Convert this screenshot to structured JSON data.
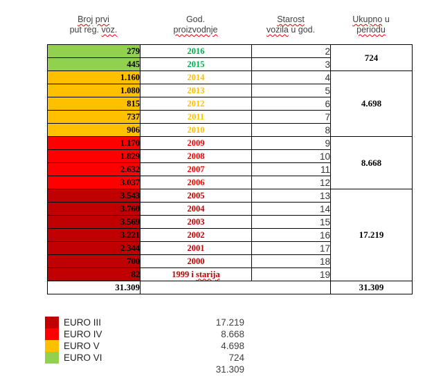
{
  "colors": {
    "euro3": {
      "bg": "#c00000",
      "year": "#c00000"
    },
    "euro4": {
      "bg": "#fe0000",
      "year": "#ff0000"
    },
    "euro5": {
      "bg": "#ffc000",
      "year": "#ffc000"
    },
    "euro6": {
      "bg": "#92d050",
      "year": "#00b050"
    },
    "squiggle": "#e00000",
    "border": "#000000"
  },
  "table": {
    "headers": [
      {
        "name": "registered-count",
        "lines": [
          [
            {
              "t": "Broj",
              "sq": true
            },
            {
              "t": "prvi",
              "sq": true
            }
          ],
          [
            {
              "t": "put",
              "sq": false
            },
            {
              "t": "reg.",
              "sq": false
            },
            {
              "t": "voz.",
              "sq": true
            }
          ]
        ]
      },
      {
        "name": "production-year",
        "lines": [
          [
            {
              "t": "God.",
              "sq": false
            }
          ],
          [
            {
              "t": "proizvodnje",
              "sq": true
            }
          ]
        ]
      },
      {
        "name": "vehicle-age",
        "lines": [
          [
            {
              "t": "Starost",
              "sq": true
            }
          ],
          [
            {
              "t": "vozila",
              "sq": true
            },
            {
              "t": "u",
              "sq": false
            },
            {
              "t": "god.",
              "sq": false
            }
          ]
        ]
      },
      {
        "name": "period-total",
        "lines": [
          [
            {
              "t": "Ukupno",
              "sq": true
            },
            {
              "t": "u",
              "sq": false
            }
          ],
          [
            {
              "t": "periodu",
              "sq": true
            }
          ]
        ]
      }
    ],
    "rows": [
      {
        "count": "279",
        "year": "2016",
        "age": "2",
        "group": "euro6"
      },
      {
        "count": "445",
        "year": "2015",
        "age": "3",
        "group": "euro6"
      },
      {
        "count": "1.160",
        "year": "2014",
        "age": "4",
        "group": "euro5"
      },
      {
        "count": "1.080",
        "year": "2013",
        "age": "5",
        "group": "euro5"
      },
      {
        "count": "815",
        "year": "2012",
        "age": "6",
        "group": "euro5"
      },
      {
        "count": "737",
        "year": "2011",
        "age": "7",
        "group": "euro5"
      },
      {
        "count": "906",
        "year": "2010",
        "age": "8",
        "group": "euro5"
      },
      {
        "count": "1.170",
        "year": "2009",
        "age": "9",
        "group": "euro4"
      },
      {
        "count": "1.829",
        "year": "2008",
        "age": "10",
        "group": "euro4"
      },
      {
        "count": "2.632",
        "year": "2007",
        "age": "11",
        "group": "euro4"
      },
      {
        "count": "3.037",
        "year": "2006",
        "age": "12",
        "group": "euro4"
      },
      {
        "count": "3.543",
        "year": "2005",
        "age": "13",
        "group": "euro3"
      },
      {
        "count": "3.760",
        "year": "2004",
        "age": "14",
        "group": "euro3"
      },
      {
        "count": "3.569",
        "year": "2003",
        "age": "15",
        "group": "euro3"
      },
      {
        "count": "3.221",
        "year": "2002",
        "age": "16",
        "group": "euro3"
      },
      {
        "count": "2.344",
        "year": "2001",
        "age": "17",
        "group": "euro3"
      },
      {
        "count": "700",
        "year": "2000",
        "age": "18",
        "group": "euro3"
      },
      {
        "count": "82",
        "year": "1999 i starija",
        "sq_word": "starija",
        "age": "19",
        "group": "euro3"
      }
    ],
    "period_groups": [
      {
        "total": "724",
        "span": 2
      },
      {
        "total": "4.698",
        "span": 5
      },
      {
        "total": "8.668",
        "span": 4
      },
      {
        "total": "17.219",
        "span": 7
      }
    ],
    "total_row": {
      "registered_total": "31.309",
      "period_total": "31.309"
    }
  },
  "legend": {
    "items": [
      {
        "label": "EURO III",
        "value": "17.219",
        "color_key": "euro3"
      },
      {
        "label": "EURO IV",
        "value": "8.668",
        "color_key": "euro4"
      },
      {
        "label": "EURO V",
        "value": "4.698",
        "color_key": "euro5"
      },
      {
        "label": "EURO VI",
        "value": "724",
        "color_key": "euro6"
      }
    ],
    "total": "31.309"
  },
  "chart_data": {
    "type": "table",
    "title": "",
    "columns": [
      "Broj prvi put reg. voz.",
      "God. proizvodnje",
      "Starost vozila u god.",
      "Ukupno u periodu"
    ],
    "rows": [
      [
        279,
        "2016",
        2
      ],
      [
        445,
        "2015",
        3
      ],
      [
        1160,
        "2014",
        4
      ],
      [
        1080,
        "2013",
        5
      ],
      [
        815,
        "2012",
        6
      ],
      [
        737,
        "2011",
        7
      ],
      [
        906,
        "2010",
        8
      ],
      [
        1170,
        "2009",
        9
      ],
      [
        1829,
        "2008",
        10
      ],
      [
        2632,
        "2007",
        11
      ],
      [
        3037,
        "2006",
        12
      ],
      [
        3543,
        "2005",
        13
      ],
      [
        3760,
        "2004",
        14
      ],
      [
        3569,
        "2003",
        15
      ],
      [
        3221,
        "2002",
        16
      ],
      [
        2344,
        "2001",
        17
      ],
      [
        700,
        "2000",
        18
      ],
      [
        82,
        "1999 i starija",
        19
      ]
    ],
    "period_totals": [
      {
        "years": "2016-2015",
        "total": 724
      },
      {
        "years": "2014-2010",
        "total": 4698
      },
      {
        "years": "2009-2006",
        "total": 8668
      },
      {
        "years": "2005-1999 i starija",
        "total": 17219
      }
    ],
    "grand_total": 31309,
    "legend": [
      {
        "label": "EURO III",
        "value": 17219,
        "color": "#c00000"
      },
      {
        "label": "EURO IV",
        "value": 8668,
        "color": "#ff0000"
      },
      {
        "label": "EURO V",
        "value": 4698,
        "color": "#ffc000"
      },
      {
        "label": "EURO VI",
        "value": 724,
        "color": "#92d050"
      }
    ]
  }
}
